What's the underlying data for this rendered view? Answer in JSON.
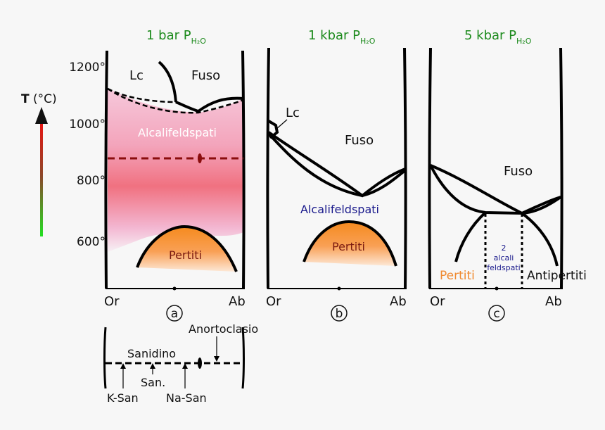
{
  "titles": {
    "a": {
      "main": "1 bar P",
      "sub": "H₂O"
    },
    "b": {
      "main": "1 kbar P",
      "sub": "H₂O"
    },
    "c": {
      "main": "5 kbar P",
      "sub": "H₂O"
    }
  },
  "axis": {
    "t_label": "(°C)",
    "t_symbol": "T",
    "ticks": [
      "1200°",
      "1000°",
      "800°",
      "600°"
    ]
  },
  "panel_a": {
    "lc": "Lc",
    "fuso": "Fuso",
    "alcali": "Alcalifeldspati",
    "pertiti": "Pertiti",
    "or": "Or",
    "ab": "Ab",
    "marker": "a"
  },
  "panel_b": {
    "lc": "Lc",
    "fuso": "Fuso",
    "alcali": "Alcalifeldspati",
    "pertiti": "Pertiti",
    "or": "Or",
    "ab": "Ab",
    "marker": "b"
  },
  "panel_c": {
    "fuso": "Fuso",
    "two": "2",
    "alcali": "alcali",
    "feldspati": "feldspati",
    "pertiti": "Pertiti",
    "antipertiti": "Antipertiti",
    "or": "Or",
    "ab": "Ab",
    "marker": "c"
  },
  "scale": {
    "sanidino": "Sanidino",
    "anortoclasio": "Anortoclasio",
    "ksan": "K-San",
    "san": "San.",
    "nasan": "Na-San"
  },
  "colors": {
    "title": "#1c8a1c",
    "alcali_b": "#1a1a8c",
    "pertiti_text_a": "#7a1a10",
    "pertiti_text_c": "#f08a30",
    "feld_c": "#1a1a8c"
  }
}
